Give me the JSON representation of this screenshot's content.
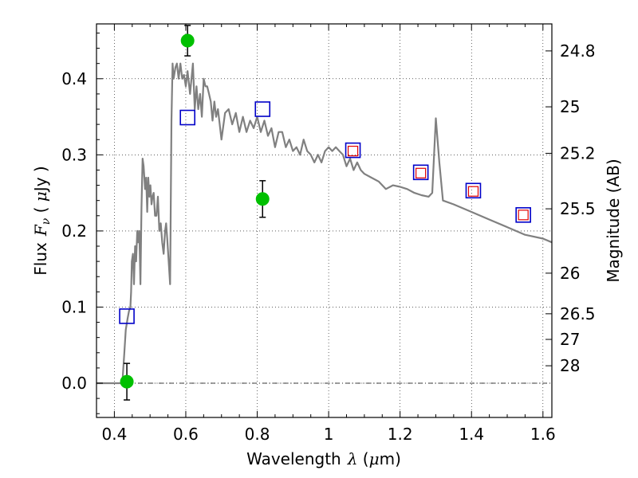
{
  "chart_data": {
    "type": "scatter",
    "xlabel": "Wavelength",
    "xlabel_math": "λ",
    "xlabel_unit_open": " (",
    "xlabel_unit_mu": "μ",
    "xlabel_unit_rest": "m)",
    "ylabel": "Flux",
    "ylabel_math": "F",
    "ylabel_math_sub": "ν",
    "ylabel_unit_open": "  ( ",
    "ylabel_unit_mu": "μ",
    "ylabel_unit_rest": "Jy )",
    "y2label": "Magnitude (AB)",
    "xlim": [
      0.35,
      1.625
    ],
    "ylim": [
      -0.045,
      0.472
    ],
    "grid": true,
    "x_ticks": [
      0.4,
      0.6,
      0.8,
      1.0,
      1.2,
      1.4,
      1.6
    ],
    "x_tick_labels": [
      "0.4",
      "0.6",
      "0.8",
      "1",
      "1.2",
      "1.4",
      "1.6"
    ],
    "y_ticks": [
      0.0,
      0.1,
      0.2,
      0.3,
      0.4
    ],
    "y_tick_labels": [
      "0.0",
      "0.1",
      "0.2",
      "0.3",
      "0.4"
    ],
    "mag_ticks": [
      24.8,
      25.0,
      25.2,
      25.5,
      26.0,
      26.5,
      27.0,
      28.0
    ],
    "mag_tick_labels": [
      "24.8",
      "25",
      "25.2",
      "25.5",
      "26",
      "26.5",
      "27",
      "28"
    ],
    "zero_line": 0.0,
    "model_spectrum": {
      "color": "#808080",
      "x": [
        0.35,
        0.418,
        0.423,
        0.428,
        0.432,
        0.437,
        0.441,
        0.445,
        0.447,
        0.449,
        0.452,
        0.455,
        0.458,
        0.461,
        0.464,
        0.467,
        0.47,
        0.473,
        0.476,
        0.479,
        0.482,
        0.486,
        0.489,
        0.492,
        0.495,
        0.498,
        0.501,
        0.504,
        0.507,
        0.51,
        0.514,
        0.518,
        0.522,
        0.526,
        0.53,
        0.534,
        0.538,
        0.542,
        0.545,
        0.548,
        0.552,
        0.556,
        0.56,
        0.563,
        0.566,
        0.571,
        0.575,
        0.58,
        0.585,
        0.59,
        0.595,
        0.6,
        0.605,
        0.612,
        0.62,
        0.625,
        0.63,
        0.635,
        0.64,
        0.645,
        0.65,
        0.655,
        0.66,
        0.665,
        0.67,
        0.675,
        0.68,
        0.685,
        0.69,
        0.7,
        0.71,
        0.72,
        0.73,
        0.74,
        0.75,
        0.76,
        0.77,
        0.78,
        0.79,
        0.8,
        0.81,
        0.82,
        0.83,
        0.84,
        0.85,
        0.86,
        0.87,
        0.88,
        0.89,
        0.9,
        0.91,
        0.92,
        0.93,
        0.94,
        0.95,
        0.96,
        0.97,
        0.98,
        0.99,
        1.0,
        1.01,
        1.02,
        1.03,
        1.04,
        1.05,
        1.06,
        1.07,
        1.08,
        1.09,
        1.1,
        1.12,
        1.14,
        1.16,
        1.18,
        1.2,
        1.22,
        1.24,
        1.26,
        1.28,
        1.29,
        1.3,
        1.31,
        1.32,
        1.35,
        1.4,
        1.45,
        1.5,
        1.55,
        1.6,
        1.625
      ],
      "y": [
        0.0,
        0.0,
        0.005,
        0.04,
        0.07,
        0.085,
        0.095,
        0.1,
        0.12,
        0.16,
        0.17,
        0.13,
        0.18,
        0.16,
        0.2,
        0.185,
        0.2,
        0.13,
        0.23,
        0.295,
        0.285,
        0.255,
        0.27,
        0.225,
        0.27,
        0.245,
        0.26,
        0.235,
        0.245,
        0.25,
        0.22,
        0.22,
        0.245,
        0.2,
        0.21,
        0.185,
        0.17,
        0.2,
        0.21,
        0.19,
        0.16,
        0.13,
        0.345,
        0.42,
        0.4,
        0.415,
        0.42,
        0.4,
        0.42,
        0.4,
        0.405,
        0.39,
        0.41,
        0.38,
        0.42,
        0.36,
        0.39,
        0.36,
        0.38,
        0.35,
        0.4,
        0.39,
        0.39,
        0.38,
        0.37,
        0.345,
        0.37,
        0.35,
        0.36,
        0.32,
        0.355,
        0.36,
        0.34,
        0.355,
        0.33,
        0.35,
        0.33,
        0.345,
        0.335,
        0.35,
        0.33,
        0.345,
        0.325,
        0.335,
        0.31,
        0.33,
        0.33,
        0.31,
        0.32,
        0.305,
        0.31,
        0.3,
        0.32,
        0.305,
        0.3,
        0.29,
        0.3,
        0.29,
        0.305,
        0.31,
        0.305,
        0.31,
        0.305,
        0.3,
        0.285,
        0.295,
        0.28,
        0.29,
        0.28,
        0.275,
        0.27,
        0.265,
        0.255,
        0.26,
        0.258,
        0.255,
        0.25,
        0.247,
        0.245,
        0.25,
        0.348,
        0.29,
        0.24,
        0.235,
        0.225,
        0.215,
        0.205,
        0.195,
        0.19,
        0.185
      ]
    },
    "series": [
      {
        "name": "green detections",
        "marker": "circle",
        "color": "#00c000",
        "points": [
          {
            "x": 0.435,
            "y": 0.002,
            "yerr": 0.024
          },
          {
            "x": 0.605,
            "y": 0.45,
            "yerr": 0.02
          },
          {
            "x": 0.815,
            "y": 0.242,
            "yerr": 0.024
          }
        ]
      },
      {
        "name": "blue open squares",
        "marker": "square",
        "color": "#0000c8",
        "points": [
          {
            "x": 0.435,
            "y": 0.088
          },
          {
            "x": 0.605,
            "y": 0.349
          },
          {
            "x": 0.815,
            "y": 0.36
          },
          {
            "x": 1.068,
            "y": 0.306
          },
          {
            "x": 1.258,
            "y": 0.277
          },
          {
            "x": 1.405,
            "y": 0.253
          },
          {
            "x": 1.545,
            "y": 0.221
          }
        ]
      },
      {
        "name": "red open squares",
        "marker": "square-small",
        "color": "#e00000",
        "points": [
          {
            "x": 1.068,
            "y": 0.305
          },
          {
            "x": 1.258,
            "y": 0.276
          },
          {
            "x": 1.405,
            "y": 0.252
          },
          {
            "x": 1.545,
            "y": 0.221
          }
        ]
      }
    ]
  }
}
